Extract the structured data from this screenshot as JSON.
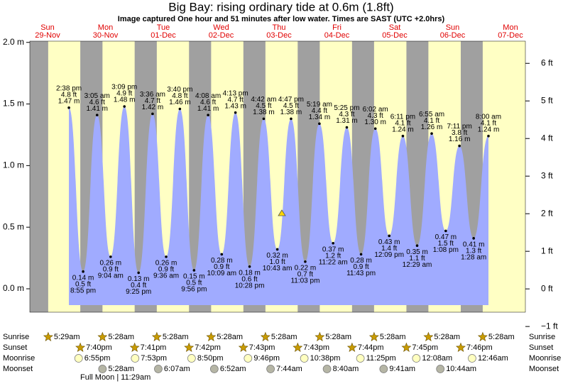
{
  "chart_data": {
    "type": "area",
    "title": "Big Bay: rising  ordinary tide at 0.6m (1.8ft)",
    "subtitle": "Image captured One hour and 51 minutes after low water. Times are SAST (UTC +2.0hrs)",
    "ylim": [
      -0.19,
      2.01
    ],
    "yticks": [
      {
        "value": 0,
        "label": "0.0 m"
      },
      {
        "value": 0.5,
        "label": "0.5 m"
      },
      {
        "value": 1,
        "label": "1.0 m"
      },
      {
        "value": 1.5,
        "label": "1.5 m"
      },
      {
        "value": 2,
        "label": "2.0 m"
      }
    ],
    "y2lim": [
      -0.62,
      6.59
    ],
    "y2ticks": [
      {
        "value": -1,
        "label": "−1 ft"
      },
      {
        "value": 0,
        "label": "0 ft"
      },
      {
        "value": 1,
        "label": "1 ft"
      },
      {
        "value": 2,
        "label": "2 ft"
      },
      {
        "value": 3,
        "label": "3 ft"
      },
      {
        "value": 4,
        "label": "4 ft"
      },
      {
        "value": 5,
        "label": "5 ft"
      },
      {
        "value": 6,
        "label": "6 ft"
      }
    ],
    "fill_color": "#a0abff",
    "row_labels": [
      "Sunrise",
      "Sunset",
      "Moonrise",
      "Moonset"
    ],
    "moon_phase": "Full Moon | 11:29am",
    "days": [
      {
        "name": "Sun",
        "date": "29-Nov",
        "sunrise": "5:29am",
        "sunset": "7:40pm",
        "moonrise": "6:55pm",
        "tides": [
          {
            "time": "2:38 pm",
            "feet": "4.8 ft",
            "height": 1.47,
            "height_label": "1.47 m",
            "kind": "high"
          },
          {
            "time": "8:55 pm",
            "feet": "0.5 ft",
            "height": 0.14,
            "height_label": "0.14 m",
            "kind": "low"
          }
        ]
      },
      {
        "name": "Mon",
        "date": "30-Nov",
        "sunrise": "5:28am",
        "sunset": "7:41pm",
        "moonrise": "7:53pm",
        "moonset": "5:28am",
        "tides": [
          {
            "time": "3:05 am",
            "feet": "4.6 ft",
            "height": 1.41,
            "height_label": "1.41 m",
            "kind": "high"
          },
          {
            "time": "9:04 am",
            "feet": "0.9 ft",
            "height": 0.26,
            "height_label": "0.26 m",
            "kind": "low"
          },
          {
            "time": "3:09 pm",
            "feet": "4.9 ft",
            "height": 1.48,
            "height_label": "1.48 m",
            "kind": "high"
          },
          {
            "time": "9:25 pm",
            "feet": "0.4 ft",
            "height": 0.13,
            "height_label": "0.13 m",
            "kind": "low"
          }
        ]
      },
      {
        "name": "Tue",
        "date": "01-Dec",
        "sunrise": "5:28am",
        "sunset": "7:42pm",
        "moonrise": "8:50pm",
        "moonset": "6:07am",
        "tides": [
          {
            "time": "3:36 am",
            "feet": "4.7 ft",
            "height": 1.42,
            "height_label": "1.42 m",
            "kind": "high"
          },
          {
            "time": "9:36 am",
            "feet": "0.9 ft",
            "height": 0.26,
            "height_label": "0.26 m",
            "kind": "low"
          },
          {
            "time": "3:40 pm",
            "feet": "4.8 ft",
            "height": 1.46,
            "height_label": "1.46 m",
            "kind": "high"
          },
          {
            "time": "9:56 pm",
            "feet": "0.5 ft",
            "height": 0.15,
            "height_label": "0.15 m",
            "kind": "low"
          }
        ]
      },
      {
        "name": "Wed",
        "date": "02-Dec",
        "sunrise": "5:28am",
        "sunset": "7:43pm",
        "moonrise": "9:46pm",
        "moonset": "6:52am",
        "tides": [
          {
            "time": "4:08 am",
            "feet": "4.6 ft",
            "height": 1.41,
            "height_label": "1.41 m",
            "kind": "high"
          },
          {
            "time": "10:09 am",
            "feet": "0.9 ft",
            "height": 0.28,
            "height_label": "0.28 m",
            "kind": "low"
          },
          {
            "time": "4:13 pm",
            "feet": "4.7 ft",
            "height": 1.43,
            "height_label": "1.43 m",
            "kind": "high"
          },
          {
            "time": "10:28 pm",
            "feet": "0.6 ft",
            "height": 0.18,
            "height_label": "0.18 m",
            "kind": "low"
          }
        ]
      },
      {
        "name": "Thu",
        "date": "03-Dec",
        "sunrise": "5:28am",
        "sunset": "7:43pm",
        "moonrise": "10:38pm",
        "moonset": "7:44am",
        "tides": [
          {
            "time": "4:42 am",
            "feet": "4.5 ft",
            "height": 1.38,
            "height_label": "1.38 m",
            "kind": "high"
          },
          {
            "time": "10:43 am",
            "feet": "1.0 ft",
            "height": 0.32,
            "height_label": "0.32 m",
            "kind": "low"
          },
          {
            "time": "4:47 pm",
            "feet": "4.5 ft",
            "height": 1.38,
            "height_label": "1.38 m",
            "kind": "high"
          },
          {
            "time": "11:03 pm",
            "feet": "0.7 ft",
            "height": 0.22,
            "height_label": "0.22 m",
            "kind": "low"
          }
        ]
      },
      {
        "name": "Fri",
        "date": "04-Dec",
        "sunrise": "5:28am",
        "sunset": "7:44pm",
        "moonrise": "11:25pm",
        "moonset": "8:40am",
        "tides": [
          {
            "time": "5:19 am",
            "feet": "4.4 ft",
            "height": 1.34,
            "height_label": "1.34 m",
            "kind": "high"
          },
          {
            "time": "11:22 am",
            "feet": "1.2 ft",
            "height": 0.37,
            "height_label": "0.37 m",
            "kind": "low"
          },
          {
            "time": "5:25 pm",
            "feet": "4.3 ft",
            "height": 1.31,
            "height_label": "1.31 m",
            "kind": "high"
          },
          {
            "time": "11:43 pm",
            "feet": "0.9 ft",
            "height": 0.28,
            "height_label": "0.28 m",
            "kind": "low"
          }
        ]
      },
      {
        "name": "Sat",
        "date": "05-Dec",
        "sunrise": "5:28am",
        "sunset": "7:45pm",
        "moonset": "9:41am",
        "tides": [
          {
            "time": "6:02 am",
            "feet": "4.3 ft",
            "height": 1.3,
            "height_label": "1.30 m",
            "kind": "high"
          },
          {
            "time": "12:09 pm",
            "feet": "1.4 ft",
            "height": 0.43,
            "height_label": "0.43 m",
            "kind": "low"
          },
          {
            "time": "6:11 pm",
            "feet": "4.1 ft",
            "height": 1.24,
            "height_label": "1.24 m",
            "kind": "high"
          }
        ]
      },
      {
        "name": "Sun",
        "date": "06-Dec",
        "sunrise": "5:28am",
        "sunset": "7:46pm",
        "moonrise": "12:08am",
        "moonset": "10:44am",
        "tides": [
          {
            "time": "12:29 am",
            "feet": "1.1 ft",
            "height": 0.35,
            "height_label": "0.35 m",
            "kind": "low"
          },
          {
            "time": "6:55 am",
            "feet": "4.1 ft",
            "height": 1.26,
            "height_label": "1.26 m",
            "kind": "high"
          },
          {
            "time": "1:08 pm",
            "feet": "1.5 ft",
            "height": 0.47,
            "height_label": "0.47 m",
            "kind": "low"
          },
          {
            "time": "7:11 pm",
            "feet": "3.8 ft",
            "height": 1.16,
            "height_label": "1.16 m",
            "kind": "high"
          }
        ]
      },
      {
        "name": "Mon",
        "date": "07-Dec",
        "sunrise": "5:28am",
        "moonrise": "12:46am",
        "tides": [
          {
            "time": "1:28 am",
            "feet": "1.3 ft",
            "height": 0.41,
            "height_label": "0.41 m",
            "kind": "low"
          },
          {
            "time": "8:00 am",
            "feet": "4.1 ft",
            "height": 1.24,
            "height_label": "1.24 m",
            "kind": "high"
          }
        ]
      }
    ]
  }
}
